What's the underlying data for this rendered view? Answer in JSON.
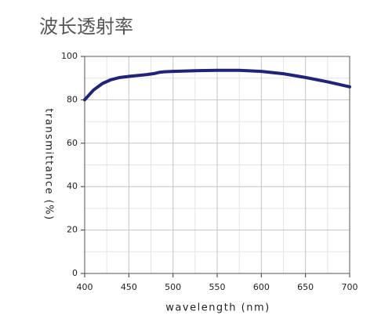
{
  "chart_data": {
    "type": "line",
    "title": "波长透射率",
    "xlabel": "wavelength (nm)",
    "ylabel": "transmittance (%)",
    "x": [
      400,
      410,
      420,
      430,
      440,
      450,
      460,
      470,
      480,
      485,
      490,
      500,
      525,
      550,
      575,
      600,
      625,
      650,
      675,
      700
    ],
    "series": [
      {
        "name": "transmittance",
        "color": "#1f2478",
        "values": [
          80,
          84.5,
          87.5,
          89.3,
          90.3,
          90.8,
          91.2,
          91.6,
          92.2,
          92.7,
          92.9,
          93.1,
          93.4,
          93.6,
          93.6,
          93.1,
          92.0,
          90.3,
          88.3,
          86.0
        ]
      }
    ],
    "xlim": [
      400,
      700
    ],
    "ylim": [
      0,
      100
    ],
    "xticks": [
      400,
      450,
      500,
      550,
      600,
      650,
      700
    ],
    "yticks": [
      0,
      20,
      40,
      60,
      80,
      100
    ],
    "xminorticks": [
      425,
      475,
      525,
      575,
      625,
      675
    ],
    "yminorticks": [
      10,
      30,
      50,
      70,
      90
    ],
    "grid": true
  }
}
